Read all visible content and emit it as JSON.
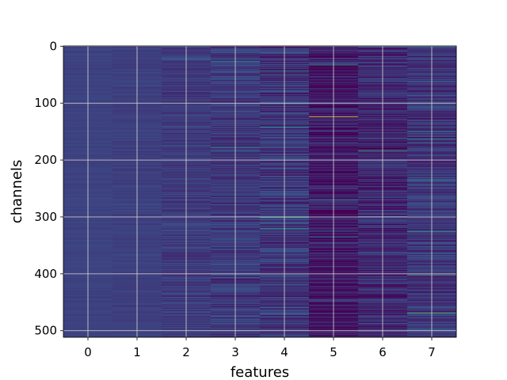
{
  "chart_data": {
    "type": "heatmap",
    "title": "",
    "xlabel": "features",
    "ylabel": "channels",
    "x_ticks": [
      "0",
      "1",
      "2",
      "3",
      "4",
      "5",
      "6",
      "7"
    ],
    "y_ticks": [
      "0",
      "100",
      "200",
      "300",
      "400",
      "500"
    ],
    "n_features": 8,
    "n_channels": 512,
    "xlim": [
      -0.5,
      7.5
    ],
    "ylim": [
      511.5,
      -0.5
    ],
    "colormap": "viridis",
    "grid": true,
    "column_base": [
      0.2,
      0.19,
      0.18,
      0.17,
      0.16,
      0.07,
      0.12,
      0.16
    ],
    "column_spread": [
      0.02,
      0.03,
      0.07,
      0.1,
      0.13,
      0.15,
      0.13,
      0.12
    ],
    "highlights": [
      {
        "feature": 3,
        "channel": 27,
        "value": 0.5
      },
      {
        "feature": 3,
        "channel": 178,
        "value": 0.45
      },
      {
        "feature": 3,
        "channel": 184,
        "value": 0.42
      },
      {
        "feature": 4,
        "channel": 43,
        "value": 0.55
      },
      {
        "feature": 4,
        "channel": 142,
        "value": 0.45
      },
      {
        "feature": 4,
        "channel": 301,
        "value": 0.6
      },
      {
        "feature": 4,
        "channel": 321,
        "value": 0.55
      },
      {
        "feature": 5,
        "channel": 33,
        "value": 0.55
      },
      {
        "feature": 5,
        "channel": 124,
        "value": 0.95
      },
      {
        "feature": 5,
        "channel": 270,
        "value": 0.5
      },
      {
        "feature": 5,
        "channel": 336,
        "value": 0.45
      },
      {
        "feature": 6,
        "channel": 162,
        "value": 0.45
      },
      {
        "feature": 6,
        "channel": 183,
        "value": 0.65
      },
      {
        "feature": 6,
        "channel": 300,
        "value": 0.45
      },
      {
        "feature": 7,
        "channel": 150,
        "value": 0.5
      },
      {
        "feature": 7,
        "channel": 163,
        "value": 0.55
      },
      {
        "feature": 7,
        "channel": 235,
        "value": 0.5
      },
      {
        "feature": 7,
        "channel": 326,
        "value": 0.55
      },
      {
        "feature": 7,
        "channel": 402,
        "value": 0.6
      },
      {
        "feature": 7,
        "channel": 469,
        "value": 0.75
      }
    ]
  }
}
